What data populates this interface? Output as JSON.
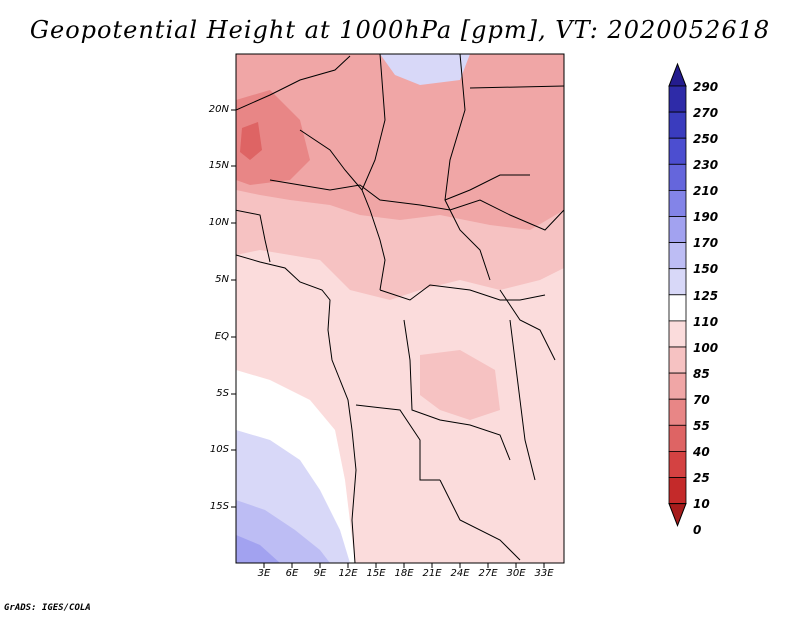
{
  "title": "Geopotential Height at 1000hPa [gpm], VT: 2020052618",
  "footer": "GrADS: IGES/COLA",
  "map": {
    "lat_labels": [
      "20N",
      "15N",
      "10N",
      "5N",
      "EQ",
      "5S",
      "10S",
      "15S"
    ],
    "lon_labels": [
      "3E",
      "6E",
      "9E",
      "12E",
      "15E",
      "18E",
      "21E",
      "24E",
      "27E",
      "30E",
      "33E"
    ],
    "lat_range": [
      -20,
      25
    ],
    "lon_range": [
      0,
      35
    ]
  },
  "colorbar": {
    "labels": [
      "290",
      "270",
      "250",
      "230",
      "210",
      "190",
      "170",
      "150",
      "125",
      "110",
      "100",
      "85",
      "70",
      "55",
      "40",
      "25",
      "10",
      "0"
    ],
    "colors": [
      "#241c8e",
      "#2e2ba8",
      "#3a3cbe",
      "#4c4ed0",
      "#6566dc",
      "#8384e8",
      "#a2a2f0",
      "#bdbdf4",
      "#d8d8f8",
      "#ffffff",
      "#fbdcdc",
      "#f6c2c2",
      "#f0a6a6",
      "#e88686",
      "#de6464",
      "#d44242",
      "#c42a2a",
      "#a61c1c"
    ]
  }
}
